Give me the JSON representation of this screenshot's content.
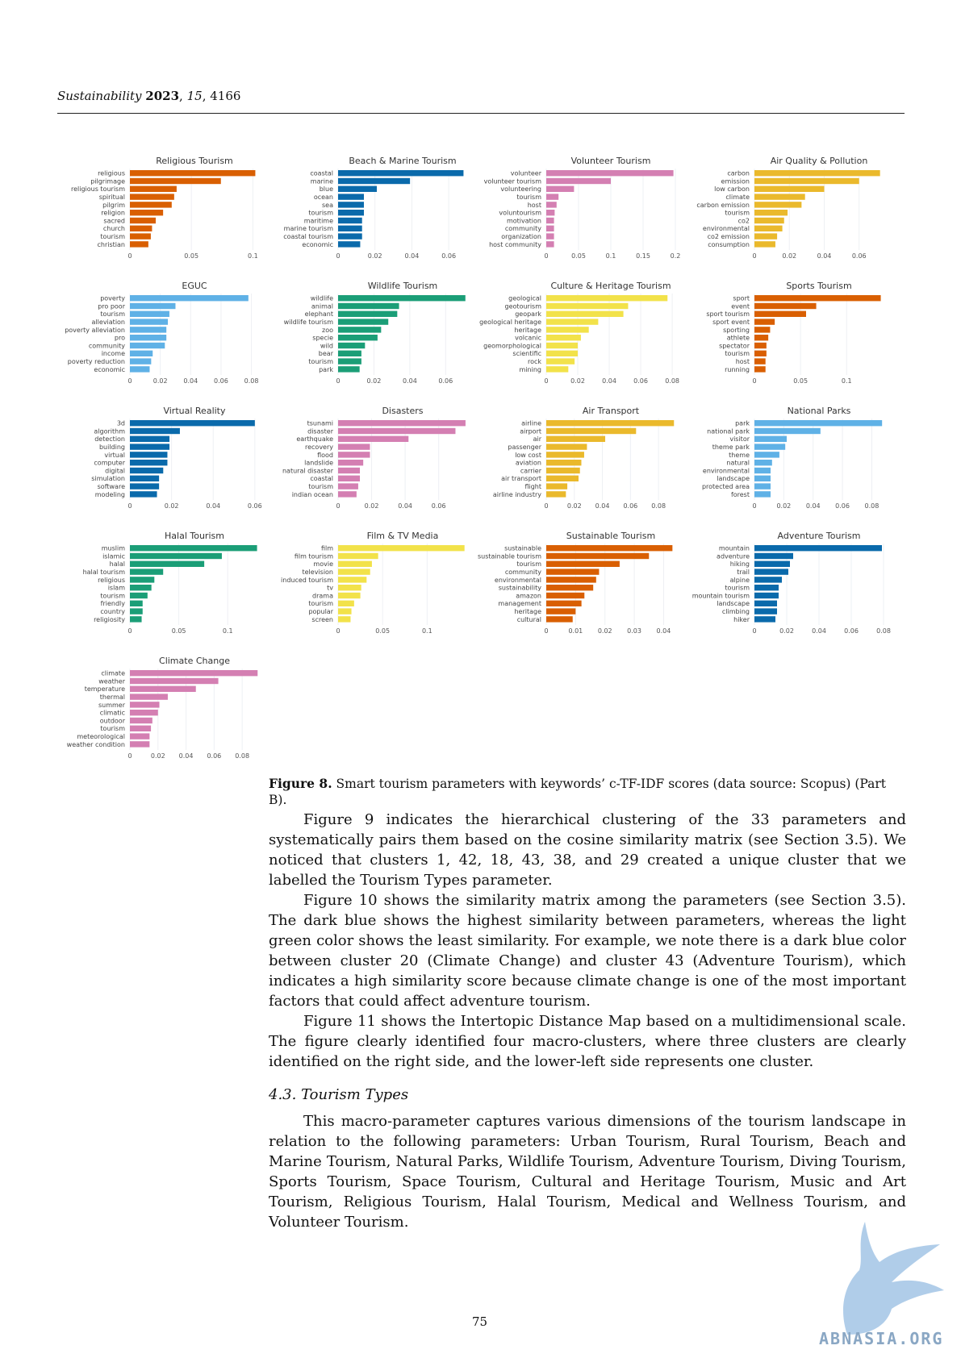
{
  "header": {
    "journal": "Sustainability",
    "year": "2023",
    "volume": "15",
    "article": "4166"
  },
  "figure": {
    "label": "Figure 8.",
    "caption": "Smart tourism parameters with keywords’ c-TF-IDF scores (data source: Scopus) (Part B)."
  },
  "chart_data": [
    {
      "type": "bar",
      "title": "Religious Tourism",
      "color": "#d95f02",
      "categories": [
        "religious",
        "pilgrimage",
        "religious tourism",
        "spiritual",
        "pilgrim",
        "religion",
        "sacred",
        "church",
        "tourism",
        "christian"
      ],
      "values": [
        0.102,
        0.074,
        0.038,
        0.036,
        0.034,
        0.027,
        0.021,
        0.018,
        0.017,
        0.015
      ],
      "xlim": [
        0,
        0.105
      ],
      "ticks": [
        0,
        0.05,
        0.1
      ]
    },
    {
      "type": "bar",
      "title": "Beach & Marine Tourism",
      "color": "#0a6aab",
      "categories": [
        "coastal",
        "marine",
        "blue",
        "ocean",
        "sea",
        "tourism",
        "maritime",
        "marine tourism",
        "coastal tourism",
        "economic"
      ],
      "values": [
        0.068,
        0.039,
        0.021,
        0.014,
        0.014,
        0.014,
        0.013,
        0.013,
        0.013,
        0.012
      ],
      "xlim": [
        0,
        0.07
      ],
      "ticks": [
        0,
        0.02,
        0.04,
        0.06
      ]
    },
    {
      "type": "bar",
      "title": "Volunteer Tourism",
      "color": "#d47fb2",
      "categories": [
        "volunteer",
        "volunteer tourism",
        "volunteering",
        "tourism",
        "host",
        "voluntourism",
        "motivation",
        "community",
        "organization",
        "host community"
      ],
      "values": [
        0.197,
        0.1,
        0.043,
        0.019,
        0.016,
        0.013,
        0.012,
        0.012,
        0.012,
        0.012
      ],
      "xlim": [
        0,
        0.2
      ],
      "ticks": [
        0,
        0.05,
        0.1,
        0.15,
        0.2
      ]
    },
    {
      "type": "bar",
      "title": "Air Quality & Pollution",
      "color": "#eab92c",
      "categories": [
        "carbon",
        "emission",
        "low carbon",
        "climate",
        "carbon emission",
        "tourism",
        "co2",
        "environmental",
        "co2 emission",
        "consumption"
      ],
      "values": [
        0.072,
        0.06,
        0.04,
        0.029,
        0.027,
        0.019,
        0.017,
        0.016,
        0.013,
        0.012
      ],
      "xlim": [
        0,
        0.074
      ],
      "ticks": [
        0,
        0.02,
        0.04,
        0.06
      ]
    },
    {
      "type": "bar",
      "title": "EGUC",
      "color": "#5fb1e6",
      "categories": [
        "poverty",
        "pro poor",
        "tourism",
        "alleviation",
        "poverty alleviation",
        "pro",
        "community",
        "income",
        "poverty reduction",
        "economic"
      ],
      "values": [
        0.078,
        0.03,
        0.026,
        0.025,
        0.024,
        0.024,
        0.023,
        0.015,
        0.014,
        0.013
      ],
      "xlim": [
        0,
        0.085
      ],
      "ticks": [
        0,
        0.02,
        0.04,
        0.06,
        0.08
      ]
    },
    {
      "type": "bar",
      "title": "Wildlife Tourism",
      "color": "#1b9e77",
      "categories": [
        "wildlife",
        "animal",
        "elephant",
        "wildlife tourism",
        "zoo",
        "specie",
        "wild",
        "bear",
        "tourism",
        "park"
      ],
      "values": [
        0.071,
        0.034,
        0.033,
        0.028,
        0.024,
        0.022,
        0.015,
        0.013,
        0.013,
        0.012
      ],
      "xlim": [
        0,
        0.072
      ],
      "ticks": [
        0,
        0.02,
        0.04,
        0.06
      ]
    },
    {
      "type": "bar",
      "title": "Culture & Heritage Tourism",
      "color": "#f2e24a",
      "categories": [
        "geological",
        "geotourism",
        "geopark",
        "geological heritage",
        "heritage",
        "volcanic",
        "geomorphological",
        "scientific",
        "rock",
        "mining"
      ],
      "values": [
        0.077,
        0.052,
        0.049,
        0.033,
        0.027,
        0.022,
        0.02,
        0.02,
        0.018,
        0.014
      ],
      "xlim": [
        0,
        0.082
      ],
      "ticks": [
        0,
        0.02,
        0.04,
        0.06,
        0.08
      ]
    },
    {
      "type": "bar",
      "title": "Sports Tourism",
      "color": "#d95f02",
      "categories": [
        "sport",
        "event",
        "sport tourism",
        "sport event",
        "sporting",
        "athlete",
        "spectator",
        "tourism",
        "host",
        "running"
      ],
      "values": [
        0.137,
        0.067,
        0.056,
        0.022,
        0.017,
        0.015,
        0.013,
        0.013,
        0.012,
        0.012
      ],
      "xlim": [
        0,
        0.14
      ],
      "ticks": [
        0,
        0.05,
        0.1
      ]
    },
    {
      "type": "bar",
      "title": "Virtual Reality",
      "color": "#0a6aab",
      "categories": [
        "3d",
        "algorithm",
        "detection",
        "building",
        "virtual",
        "computer",
        "digital",
        "simulation",
        "software",
        "modeling"
      ],
      "values": [
        0.06,
        0.024,
        0.019,
        0.019,
        0.018,
        0.018,
        0.016,
        0.014,
        0.014,
        0.013
      ],
      "xlim": [
        0,
        0.062
      ],
      "ticks": [
        0,
        0.02,
        0.04,
        0.06
      ]
    },
    {
      "type": "bar",
      "title": "Disasters",
      "color": "#d47fb2",
      "categories": [
        "tsunami",
        "disaster",
        "earthquake",
        "recovery",
        "flood",
        "landslide",
        "natural disaster",
        "coastal",
        "tourism",
        "indian ocean"
      ],
      "values": [
        0.076,
        0.07,
        0.042,
        0.019,
        0.019,
        0.015,
        0.013,
        0.013,
        0.012,
        0.011
      ],
      "xlim": [
        0,
        0.077
      ],
      "ticks": [
        0,
        0.02,
        0.04,
        0.06
      ]
    },
    {
      "type": "bar",
      "title": "Air Transport",
      "color": "#eab92c",
      "categories": [
        "airline",
        "airport",
        "air",
        "passenger",
        "low cost",
        "aviation",
        "carrier",
        "air transport",
        "flight",
        "airline industry"
      ],
      "values": [
        0.091,
        0.064,
        0.042,
        0.029,
        0.027,
        0.025,
        0.024,
        0.023,
        0.015,
        0.014
      ],
      "xlim": [
        0,
        0.092
      ],
      "ticks": [
        0,
        0.02,
        0.04,
        0.06,
        0.08
      ]
    },
    {
      "type": "bar",
      "title": "National Parks",
      "color": "#5fb1e6",
      "categories": [
        "park",
        "national park",
        "visitor",
        "theme park",
        "theme",
        "natural",
        "environmental",
        "landscape",
        "protected area",
        "forest"
      ],
      "values": [
        0.087,
        0.045,
        0.022,
        0.021,
        0.017,
        0.012,
        0.011,
        0.011,
        0.011,
        0.011
      ],
      "xlim": [
        0,
        0.088
      ],
      "ticks": [
        0,
        0.02,
        0.04,
        0.06,
        0.08
      ]
    },
    {
      "type": "bar",
      "title": "Halal Tourism",
      "color": "#1b9e77",
      "categories": [
        "muslim",
        "islamic",
        "halal",
        "halal tourism",
        "religious",
        "islam",
        "tourism",
        "friendly",
        "country",
        "religiosity"
      ],
      "values": [
        0.13,
        0.094,
        0.076,
        0.034,
        0.025,
        0.022,
        0.018,
        0.013,
        0.013,
        0.012
      ],
      "xlim": [
        0,
        0.132
      ],
      "ticks": [
        0,
        0.05,
        0.1
      ]
    },
    {
      "type": "bar",
      "title": "Film & TV Media",
      "color": "#f2e24a",
      "categories": [
        "film",
        "film tourism",
        "movie",
        "television",
        "induced tourism",
        "tv",
        "drama",
        "tourism",
        "popular",
        "screen"
      ],
      "values": [
        0.142,
        0.045,
        0.038,
        0.036,
        0.032,
        0.026,
        0.025,
        0.018,
        0.015,
        0.014
      ],
      "xlim": [
        0,
        0.145
      ],
      "ticks": [
        0,
        0.05,
        0.1
      ]
    },
    {
      "type": "bar",
      "title": "Sustainable Tourism",
      "color": "#d95f02",
      "categories": [
        "sustainable",
        "sustainable tourism",
        "tourism",
        "community",
        "environmental",
        "sustainability",
        "amazon",
        "management",
        "heritage",
        "cultural"
      ],
      "values": [
        0.043,
        0.035,
        0.025,
        0.018,
        0.017,
        0.016,
        0.013,
        0.012,
        0.01,
        0.009
      ],
      "xlim": [
        0,
        0.044
      ],
      "ticks": [
        0,
        0.01,
        0.02,
        0.03,
        0.04
      ]
    },
    {
      "type": "bar",
      "title": "Adventure Tourism",
      "color": "#0a6aab",
      "categories": [
        "mountain",
        "adventure",
        "hiking",
        "trail",
        "alpine",
        "tourism",
        "mountain tourism",
        "landscape",
        "climbing",
        "hiker"
      ],
      "values": [
        0.079,
        0.024,
        0.022,
        0.021,
        0.017,
        0.015,
        0.015,
        0.014,
        0.014,
        0.013
      ],
      "xlim": [
        0,
        0.08
      ],
      "ticks": [
        0,
        0.02,
        0.04,
        0.06,
        0.08
      ]
    },
    {
      "type": "bar",
      "title": "Climate Change",
      "color": "#d47fb2",
      "categories": [
        "climate",
        "weather",
        "temperature",
        "thermal",
        "summer",
        "climatic",
        "outdoor",
        "tourism",
        "meteorological",
        "weather condition"
      ],
      "values": [
        0.091,
        0.063,
        0.047,
        0.027,
        0.021,
        0.02,
        0.016,
        0.015,
        0.014,
        0.014
      ],
      "xlim": [
        0,
        0.092
      ],
      "ticks": [
        0,
        0.02,
        0.04,
        0.06,
        0.08
      ]
    }
  ],
  "body": {
    "paragraphs": [
      "Figure 9 indicates the hierarchical clustering of the 33 parameters and systematically pairs them based on the cosine similarity matrix (see Section 3.5). We noticed that clusters 1, 42, 18, 43, 38, and 29 created a unique cluster that we labelled the Tourism Types parameter.",
      "Figure 10 shows the similarity matrix among the parameters (see Section 3.5). The dark blue shows the highest similarity between parameters, whereas the light green color shows the least similarity. For example, we note there is a dark blue color between cluster 20 (Climate Change) and cluster 43 (Adventure Tourism), which indicates a high similarity score because climate change is one of the most important factors that could affect adventure tourism.",
      "Figure 11 shows the Intertopic Distance Map based on a multidimensional scale. The figure clearly identified four macro-clusters, where three clusters are clearly identified on the right side, and the lower-left side represents one cluster."
    ],
    "section_heading": "4.3. Tourism Types",
    "section_paragraph": "This macro-parameter captures various dimensions of the tourism landscape in relation to the following parameters: Urban Tourism, Rural Tourism, Beach and Marine Tourism, Natural Parks, Wildlife Tourism, Adventure Tourism, Diving Tourism, Sports Tourism, Space Tourism, Cultural and Heritage Tourism, Music and Art Tourism, Religious Tourism, Halal Tourism, Medical and Wellness Tourism, and Volunteer Tourism."
  },
  "page_number": "75",
  "watermark": "ABNASIA.ORG"
}
